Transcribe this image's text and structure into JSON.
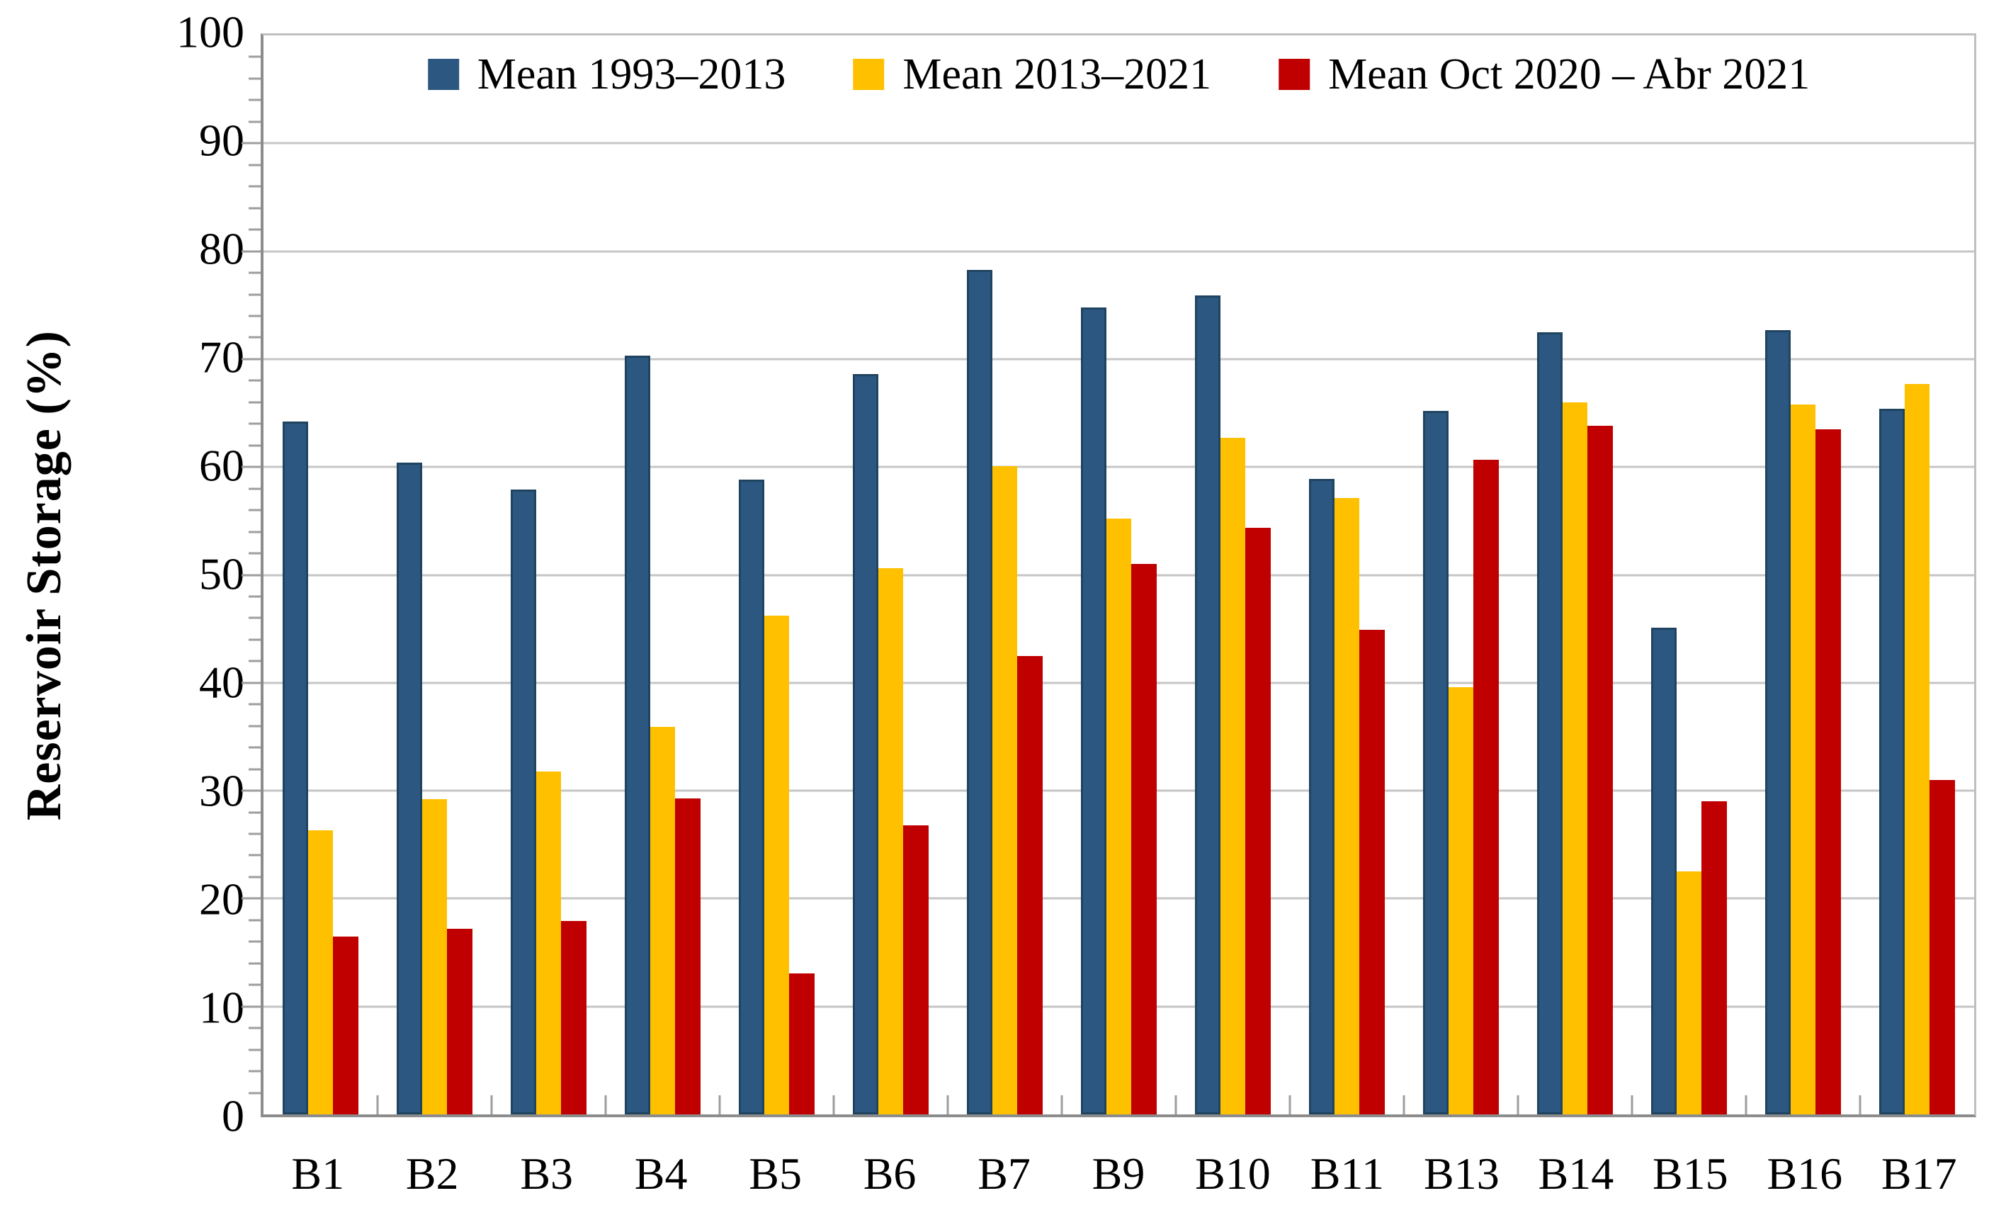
{
  "figure": {
    "background": "#ffffff"
  },
  "chart_data": {
    "type": "bar",
    "title": "",
    "xlabel": "",
    "ylabel": "Reservoir Storage (%)",
    "ylim": [
      0,
      100
    ],
    "ytick_step": 10,
    "minor_tick_step": 2,
    "yticks": [
      0,
      10,
      20,
      30,
      40,
      50,
      60,
      70,
      80,
      90,
      100
    ],
    "grid": "horizontal",
    "grid_color": "#c6c6c6",
    "axis_color": "#8c8c8c",
    "text_color": "#000000",
    "legend_position": "top-center-inside",
    "categories": [
      "B1",
      "B2",
      "B3",
      "B4",
      "B5",
      "B6",
      "B7",
      "B9",
      "B10",
      "B11",
      "B13",
      "B14",
      "B15",
      "B16",
      "B17"
    ],
    "series": [
      {
        "name": "Mean 1993–2013",
        "color": "#2b5781",
        "border": "#204460",
        "values": [
          64.2,
          60.4,
          57.9,
          70.3,
          58.8,
          68.6,
          78.3,
          74.8,
          75.9,
          58.9,
          65.2,
          72.5,
          45.1,
          72.7,
          65.4
        ]
      },
      {
        "name": "Mean 2013–2021",
        "color": "#ffc000",
        "border": "",
        "values": [
          26.3,
          29.2,
          31.8,
          35.9,
          46.2,
          50.6,
          60.1,
          55.2,
          62.7,
          57.1,
          39.6,
          66.0,
          22.5,
          65.8,
          67.7
        ]
      },
      {
        "name": "Mean Oct 2020 – Abr 2021",
        "color": "#c00000",
        "border": "",
        "values": [
          16.5,
          17.2,
          17.9,
          29.3,
          13.1,
          26.8,
          42.5,
          51.0,
          54.4,
          44.9,
          60.7,
          63.8,
          29.0,
          63.5,
          31.0
        ]
      }
    ]
  }
}
